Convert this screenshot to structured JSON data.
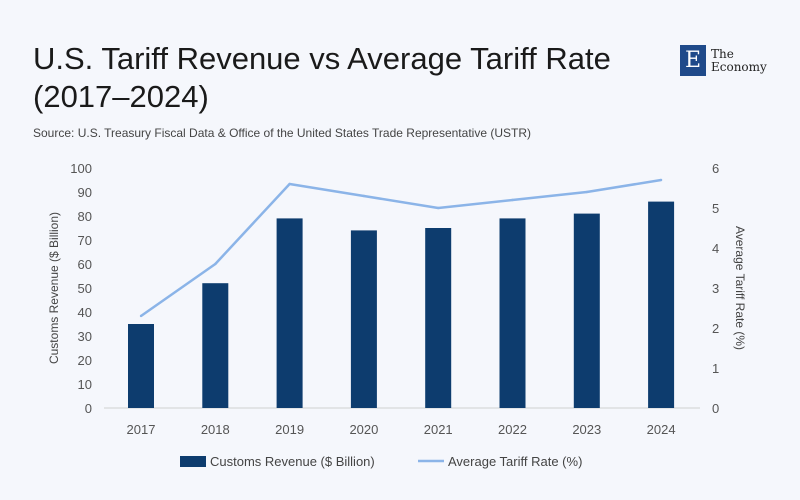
{
  "chart_data": {
    "type": "bar+line",
    "title": "U.S. Tariff Revenue vs Average Tariff Rate (2017–2024)",
    "source": "Source:  U.S. Treasury Fiscal Data & Office of the United States Trade Representative (USTR)",
    "categories": [
      "2017",
      "2018",
      "2019",
      "2020",
      "2021",
      "2022",
      "2023",
      "2024"
    ],
    "series": [
      {
        "name": "Customs Revenue ($ Billion)",
        "type": "bar",
        "axis": "left",
        "color": "#0d3c6e",
        "values": [
          35,
          52,
          79,
          74,
          75,
          79,
          81,
          86
        ]
      },
      {
        "name": "Average Tariff Rate (%)",
        "type": "line",
        "axis": "right",
        "color": "#8bb4e8",
        "values": [
          2.3,
          3.6,
          5.6,
          5.3,
          5.0,
          5.2,
          5.4,
          5.7
        ]
      }
    ],
    "ylabel": "Customs Revenue ($ Billion)",
    "y2label": "Average Tariff Rate (%)",
    "ylim": [
      0,
      100
    ],
    "y2lim": [
      0,
      6
    ],
    "yticks": [
      0,
      10,
      20,
      30,
      40,
      50,
      60,
      70,
      80,
      90,
      100
    ],
    "y2ticks": [
      0,
      1,
      2,
      3,
      4,
      5,
      6
    ],
    "legend": "bottom",
    "grid": false
  },
  "logo": {
    "mark": "E",
    "line1": "The",
    "line2": "Economy"
  }
}
